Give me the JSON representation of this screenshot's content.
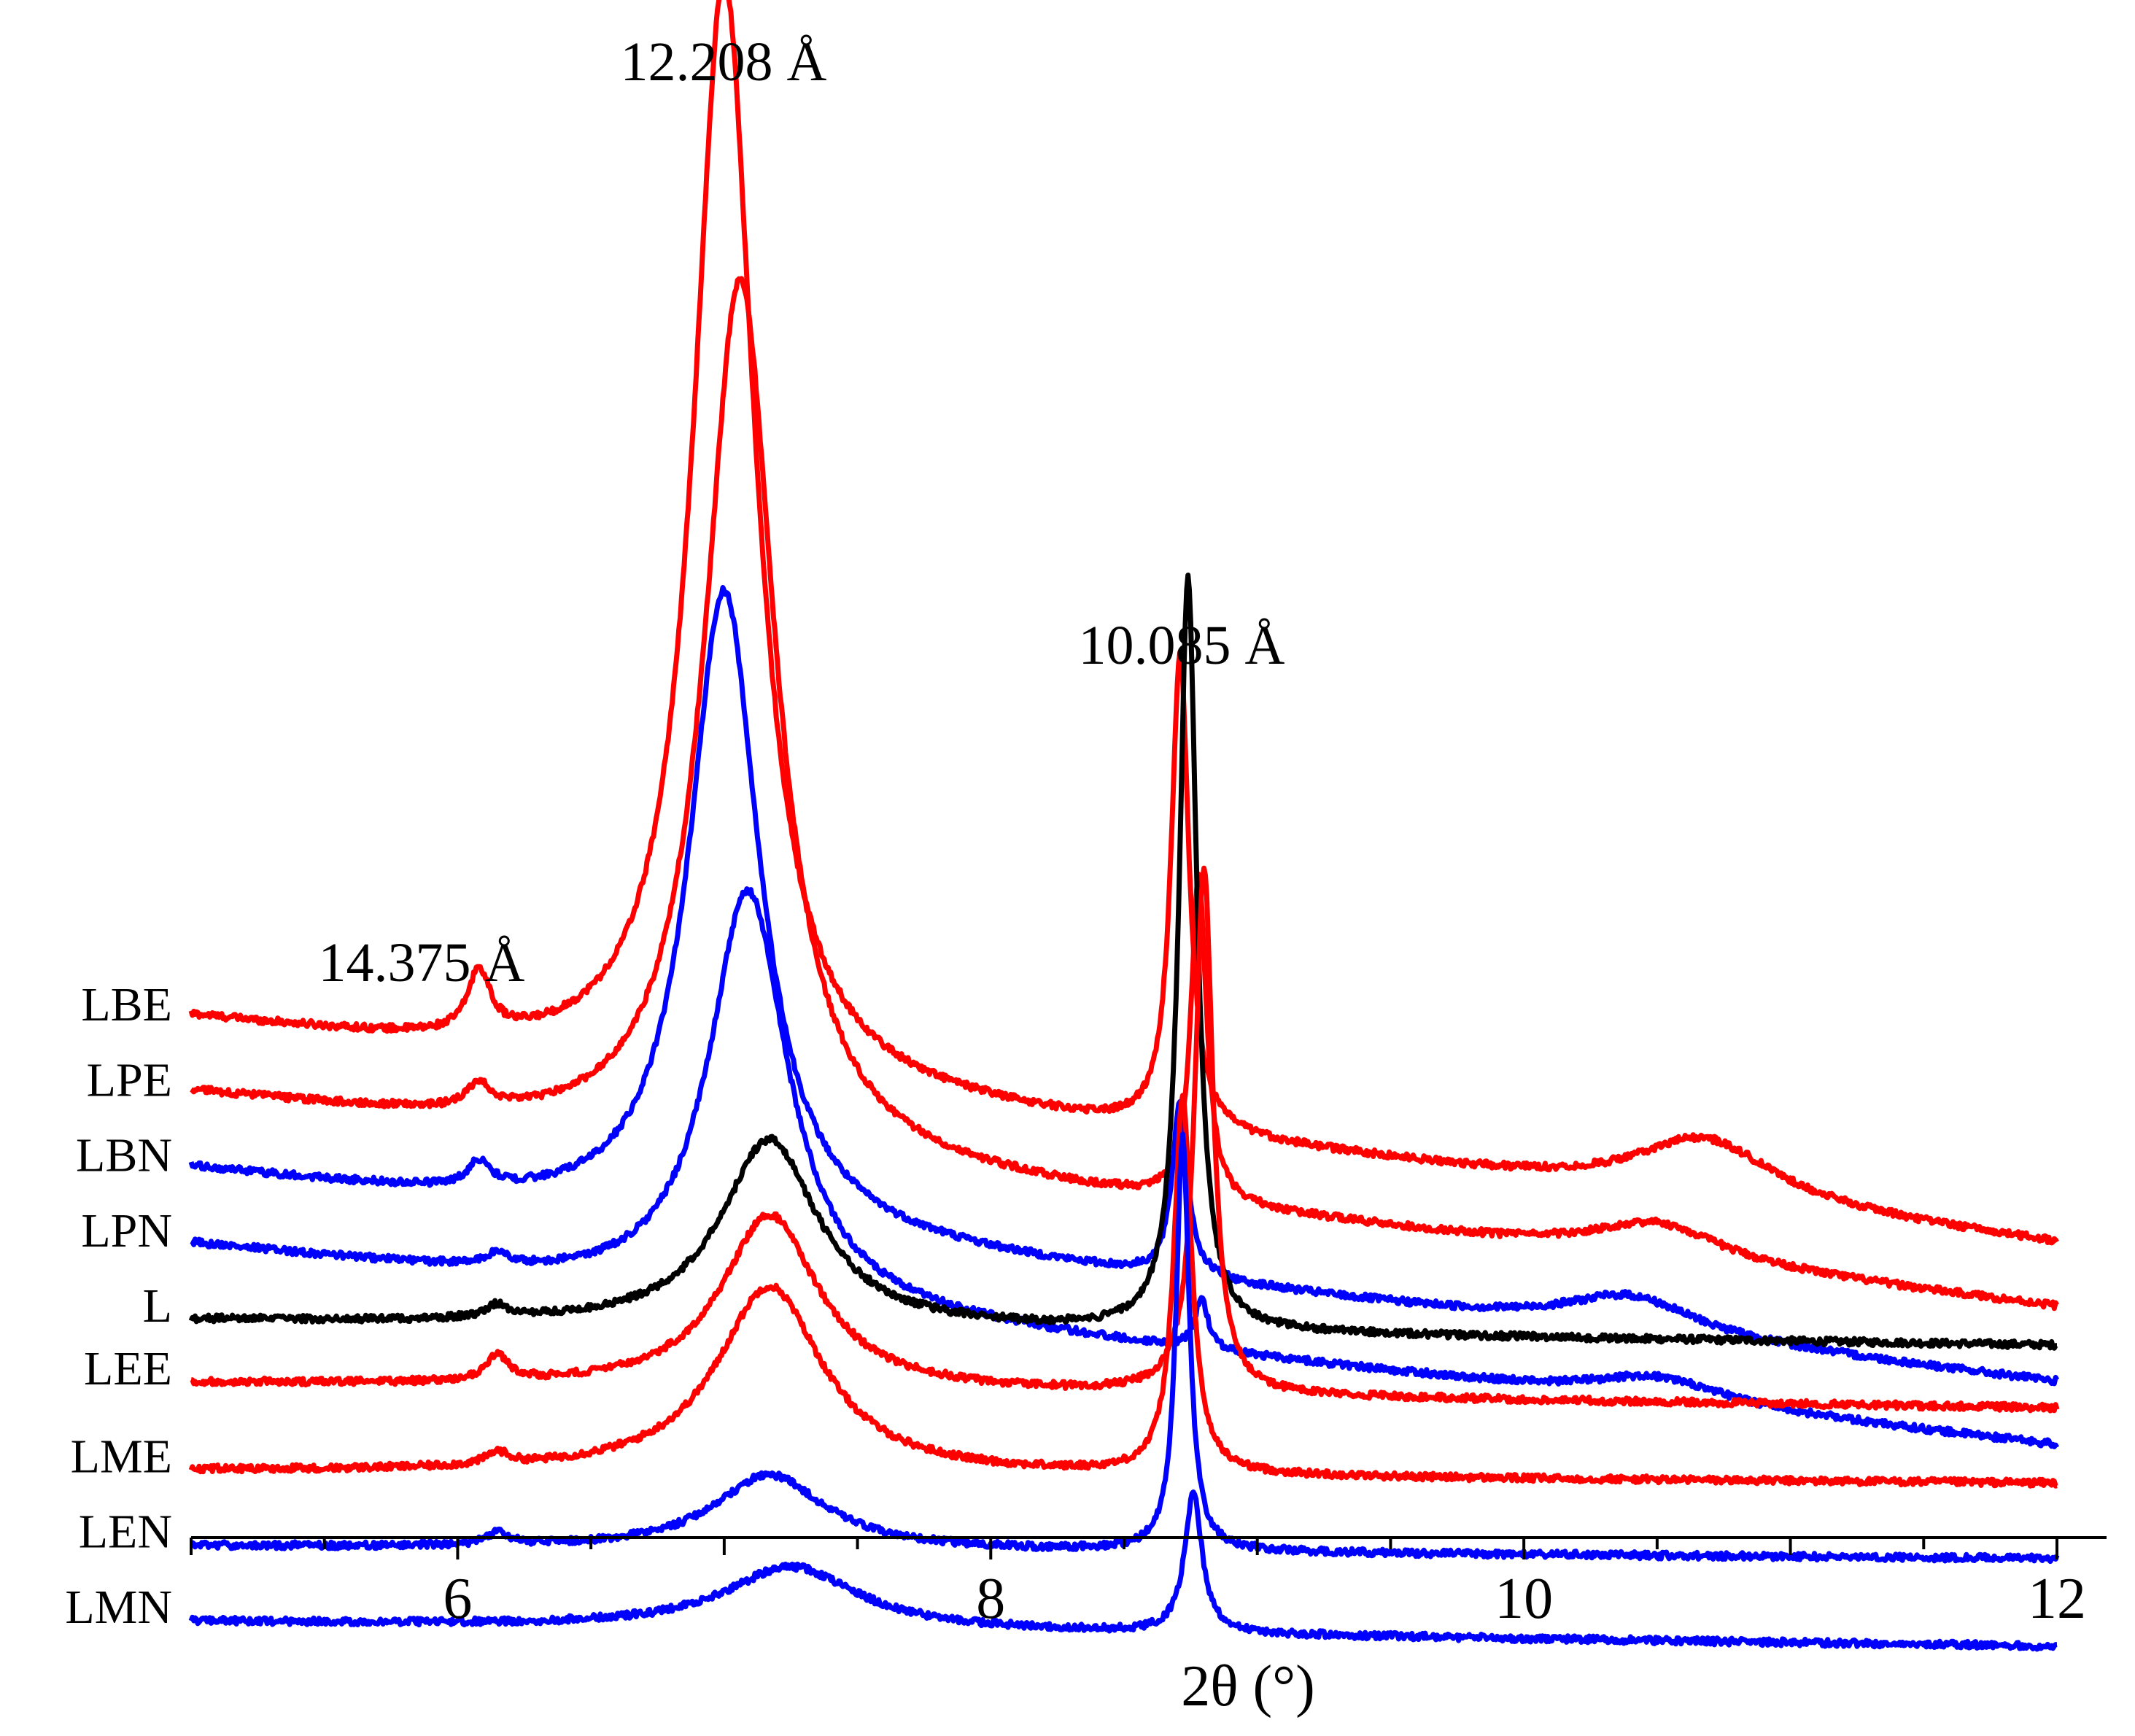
{
  "chart_data": {
    "type": "line",
    "title": "",
    "xlabel": "2θ (°)",
    "ylabel": "",
    "xlim": [
      5,
      12
    ],
    "xticks": [
      6,
      8,
      10,
      12
    ],
    "xtick_labels": [
      "6",
      "8",
      "10",
      "12"
    ],
    "grid": false,
    "legend": "none",
    "annotations": [
      {
        "text": "14.375 Å",
        "x": 6.1
      },
      {
        "text": "12.208 Å",
        "x": 7.0
      },
      {
        "text": "10.085 Å",
        "x": 8.75
      }
    ],
    "series": [
      {
        "name": "LBE",
        "color": "#ff0000",
        "baseline": 24,
        "end": 6,
        "peaks": [
          [
            6.08,
            5,
            0.05
          ],
          [
            7.0,
            88,
            0.14
          ],
          [
            8.71,
            38,
            0.04
          ],
          [
            10.68,
            5,
            0.32
          ]
        ]
      },
      {
        "name": "LPE",
        "color": "#ff0000",
        "baseline": 18,
        "end": 1,
        "peaks": [
          [
            6.08,
            2,
            0.05
          ],
          [
            7.06,
            70,
            0.16
          ],
          [
            8.78,
            26,
            0.035
          ],
          [
            10.5,
            3,
            0.3
          ]
        ]
      },
      {
        "name": "LBN",
        "color": "#0000ff",
        "baseline": 12,
        "end": -5,
        "peaks": [
          [
            6.08,
            2,
            0.05
          ],
          [
            7.0,
            51,
            0.16
          ],
          [
            8.71,
            14,
            0.035
          ],
          [
            10.4,
            3,
            0.3
          ]
        ]
      },
      {
        "name": "LPN",
        "color": "#0000ff",
        "baseline": 6,
        "end": -10,
        "peaks": [
          [
            6.15,
            1,
            0.05
          ],
          [
            7.09,
            33,
            0.18
          ],
          [
            8.79,
            4,
            0.03
          ],
          [
            10.5,
            2,
            0.3
          ]
        ]
      },
      {
        "name": "L",
        "color": "#000000",
        "baseline": 0,
        "end": -2,
        "peaks": [
          [
            6.15,
            1,
            0.05
          ],
          [
            7.17,
            15,
            0.22
          ],
          [
            8.74,
            60,
            0.04
          ]
        ]
      },
      {
        "name": "LEE",
        "color": "#ff0000",
        "baseline": -5,
        "end": -7,
        "peaks": [
          [
            6.15,
            2,
            0.05
          ],
          [
            7.17,
            14,
            0.22
          ],
          [
            8.8,
            42,
            0.04
          ]
        ]
      },
      {
        "name": "LME",
        "color": "#ff0000",
        "baseline": -12,
        "end": -13,
        "peaks": [
          [
            6.15,
            1,
            0.05
          ],
          [
            7.17,
            15,
            0.24
          ],
          [
            8.72,
            30,
            0.04
          ]
        ]
      },
      {
        "name": "LEN",
        "color": "#0000ff",
        "baseline": -18,
        "end": -19,
        "peaks": [
          [
            6.15,
            1,
            0.05
          ],
          [
            7.17,
            6,
            0.25
          ],
          [
            8.72,
            33,
            0.03
          ]
        ]
      },
      {
        "name": "LMN",
        "color": "#0000ff",
        "baseline": -24,
        "end": -26,
        "peaks": [
          [
            7.25,
            5,
            0.3
          ],
          [
            8.76,
            11,
            0.04
          ]
        ]
      }
    ]
  }
}
